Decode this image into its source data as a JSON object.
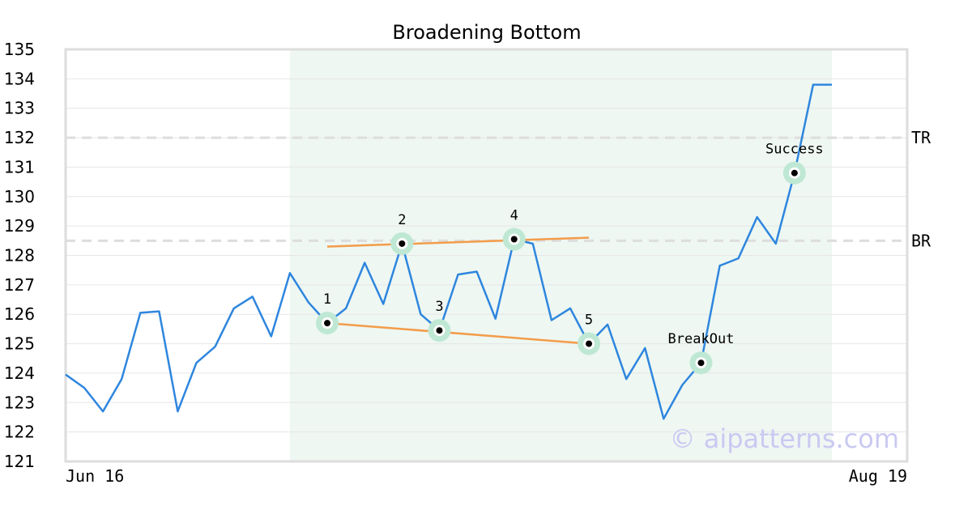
{
  "chart_data": {
    "type": "line",
    "title": "Broadening Bottom",
    "watermark": "© aipatterns.com",
    "ylim": [
      121,
      135
    ],
    "yticks": [
      121,
      122,
      123,
      124,
      125,
      126,
      127,
      128,
      129,
      130,
      131,
      132,
      133,
      134,
      135
    ],
    "x_tick_labels": [
      {
        "index": 0,
        "label": "Jun 16"
      },
      {
        "index": 41,
        "label": "Aug 19"
      }
    ],
    "grid": "horizontal",
    "series": [
      {
        "color": "#2e86de",
        "values": [
          123.95,
          123.5,
          122.7,
          123.8,
          126.05,
          126.1,
          122.7,
          124.35,
          124.9,
          126.2,
          126.6,
          125.25,
          127.4,
          126.4,
          125.7,
          126.2,
          127.75,
          126.35,
          128.4,
          126.0,
          125.45,
          127.35,
          127.45,
          125.85,
          128.55,
          128.4,
          125.8,
          126.2,
          125.0,
          125.65,
          123.8,
          124.85,
          122.45,
          123.6,
          124.35,
          127.65,
          127.9,
          129.3,
          128.4,
          130.8,
          133.8,
          133.8
        ]
      }
    ],
    "highlight_region": {
      "from_index": 12,
      "to_index": 41,
      "color": "#eef7f2"
    },
    "reference_lines": [
      {
        "label": "TR",
        "value": 132.0
      },
      {
        "label": "BR",
        "value": 128.5
      }
    ],
    "trend_lines": [
      {
        "from": [
          14,
          128.3
        ],
        "to": [
          28,
          128.6
        ],
        "color": "#f39c4a"
      },
      {
        "from": [
          14,
          125.7
        ],
        "to": [
          28,
          125.0
        ],
        "color": "#f39c4a"
      }
    ],
    "annotations": [
      {
        "label": "1",
        "index": 14,
        "value": 125.7
      },
      {
        "label": "2",
        "index": 18,
        "value": 128.4
      },
      {
        "label": "3",
        "index": 20,
        "value": 125.45
      },
      {
        "label": "4",
        "index": 24,
        "value": 128.55
      },
      {
        "label": "5",
        "index": 28,
        "value": 125.0
      },
      {
        "label": "BreakOut",
        "index": 34,
        "value": 124.35
      },
      {
        "label": "Success",
        "index": 39,
        "value": 130.8
      }
    ]
  }
}
